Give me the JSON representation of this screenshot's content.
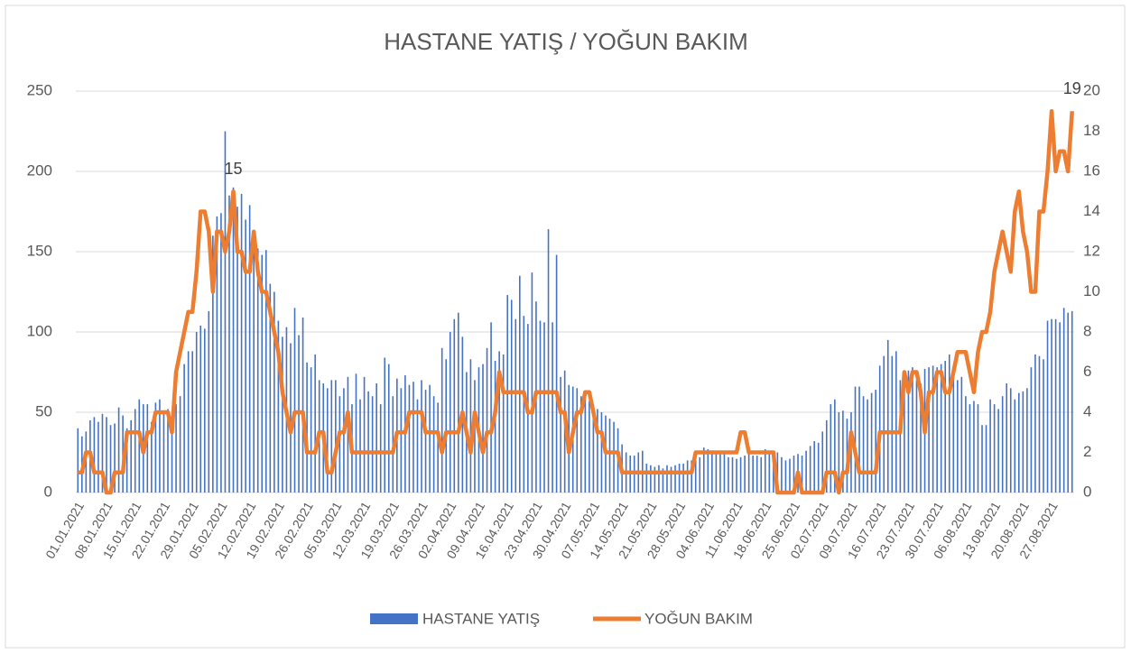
{
  "chart_data": {
    "type": "bar_line",
    "title": "HASTANE YATIŞ / YOĞUN BAKIM",
    "categories": [
      "01.01.2021",
      null,
      null,
      null,
      null,
      null,
      null,
      "08.01.2021",
      null,
      null,
      null,
      null,
      null,
      null,
      "15.01.2021",
      null,
      null,
      null,
      null,
      null,
      null,
      "22.01.2021",
      null,
      null,
      null,
      null,
      null,
      null,
      "29.01.2021",
      null,
      null,
      null,
      null,
      null,
      null,
      "05.02.2021",
      null,
      null,
      null,
      null,
      null,
      null,
      "12.02.2021",
      null,
      null,
      null,
      null,
      null,
      null,
      "19.02.2021",
      null,
      null,
      null,
      null,
      null,
      null,
      "26.02.2021",
      null,
      null,
      null,
      null,
      null,
      null,
      "05.03.2021",
      null,
      null,
      null,
      null,
      null,
      null,
      "12.03.2021",
      null,
      null,
      null,
      null,
      null,
      null,
      "19.03.2021",
      null,
      null,
      null,
      null,
      null,
      null,
      "26.03.2021",
      null,
      null,
      null,
      null,
      null,
      null,
      "02.04.2021",
      null,
      null,
      null,
      null,
      null,
      null,
      "09.04.2021",
      null,
      null,
      null,
      null,
      null,
      null,
      "16.04.2021",
      null,
      null,
      null,
      null,
      null,
      null,
      "23.04.2021",
      null,
      null,
      null,
      null,
      null,
      null,
      "30.04.2021",
      null,
      null,
      null,
      null,
      null,
      null,
      "07.05.2021",
      null,
      null,
      null,
      null,
      null,
      null,
      "14.05.2021",
      null,
      null,
      null,
      null,
      null,
      null,
      "21.05.2021",
      null,
      null,
      null,
      null,
      null,
      null,
      "28.05.2021",
      null,
      null,
      null,
      null,
      null,
      null,
      "04.06.2021",
      null,
      null,
      null,
      null,
      null,
      null,
      "11.06.2021",
      null,
      null,
      null,
      null,
      null,
      null,
      "18.06.2021",
      null,
      null,
      null,
      null,
      null,
      null,
      "25.06.2021",
      null,
      null,
      null,
      null,
      null,
      null,
      "02.07.2021",
      null,
      null,
      null,
      null,
      null,
      null,
      "09.07.2021",
      null,
      null,
      null,
      null,
      null,
      null,
      "16.07.2021",
      null,
      null,
      null,
      null,
      null,
      null,
      "23.07.2021",
      null,
      null,
      null,
      null,
      null,
      null,
      "30.07.2021",
      null,
      null,
      null,
      null,
      null,
      null,
      "06.08.2021",
      null,
      null,
      null,
      null,
      null,
      null,
      "13.08.2021",
      null,
      null,
      null,
      null,
      null,
      null,
      "20.08.2021",
      null,
      null,
      null,
      null,
      null,
      null,
      "27.08.2021",
      null,
      null,
      null,
      null,
      null
    ],
    "series": [
      {
        "name": "HASTANE YATIŞ",
        "type": "bar",
        "color": "#4472c4",
        "values": [
          40,
          35,
          38,
          45,
          47,
          44,
          49,
          47,
          42,
          43,
          53,
          48,
          40,
          45,
          52,
          58,
          55,
          55,
          44,
          56,
          58,
          50,
          52,
          48,
          55,
          60,
          80,
          88,
          88,
          100,
          104,
          102,
          113,
          160,
          172,
          174,
          225,
          185,
          190,
          178,
          186,
          170,
          179,
          160,
          152,
          148,
          151,
          130,
          125,
          107,
          97,
          103,
          93,
          115,
          98,
          109,
          81,
          78,
          86,
          70,
          68,
          65,
          70,
          70,
          60,
          65,
          72,
          55,
          74,
          58,
          72,
          63,
          60,
          68,
          55,
          84,
          80,
          60,
          71,
          65,
          73,
          67,
          69,
          58,
          70,
          64,
          67,
          60,
          56,
          90,
          83,
          100,
          108,
          112,
          97,
          75,
          83,
          70,
          78,
          80,
          90,
          106,
          82,
          88,
          86,
          123,
          120,
          108,
          135,
          110,
          105,
          137,
          119,
          107,
          106,
          164,
          106,
          148,
          72,
          76,
          67,
          66,
          65,
          60,
          58,
          57,
          55,
          52,
          50,
          48,
          46,
          44,
          40,
          30,
          25,
          23,
          23,
          25,
          26,
          18,
          17,
          16,
          17,
          15,
          17,
          16,
          17,
          18,
          18,
          20,
          20,
          20,
          22,
          28,
          27,
          25,
          24,
          25,
          24,
          22,
          22,
          21,
          22,
          23,
          25,
          23,
          23,
          22,
          27,
          24,
          24,
          25,
          22,
          20,
          21,
          23,
          24,
          23,
          26,
          29,
          32,
          31,
          38,
          45,
          55,
          58,
          50,
          51,
          46,
          50,
          66,
          66,
          60,
          58,
          62,
          64,
          79,
          85,
          95,
          85,
          88,
          70,
          65,
          76,
          78,
          70,
          68,
          77,
          78,
          79,
          78,
          80,
          82,
          86,
          73,
          70,
          72,
          60,
          55,
          57,
          55,
          42,
          42,
          58,
          55,
          52,
          60,
          68,
          65,
          58,
          62,
          63,
          65,
          78,
          86,
          85,
          83,
          107,
          108,
          108,
          106,
          115,
          112,
          113
        ]
      },
      {
        "name": "YOĞUN BAKIM",
        "type": "line",
        "axis": "y2",
        "color": "#ed7d31",
        "values": [
          1,
          1,
          2,
          2,
          1,
          1,
          1,
          0,
          0,
          1,
          1,
          1,
          3,
          3,
          3,
          3,
          2,
          3,
          3,
          4,
          4,
          4,
          4,
          3,
          6,
          7,
          8,
          9,
          9,
          11,
          14,
          14,
          13,
          10,
          13,
          13,
          12,
          13,
          15,
          12,
          12,
          11,
          11,
          13,
          11,
          10,
          10,
          9,
          8,
          7,
          5,
          4,
          3,
          4,
          4,
          4,
          2,
          2,
          2,
          3,
          3,
          1,
          1,
          2,
          3,
          3,
          4,
          2,
          2,
          2,
          2,
          2,
          2,
          2,
          2,
          2,
          2,
          2,
          3,
          3,
          3,
          4,
          4,
          4,
          4,
          3,
          3,
          3,
          3,
          2,
          3,
          3,
          3,
          3,
          4,
          3,
          2,
          4,
          3,
          2,
          3,
          3,
          4,
          6,
          5,
          5,
          5,
          5,
          5,
          5,
          4,
          4,
          5,
          5,
          5,
          5,
          5,
          5,
          4,
          4,
          2,
          3,
          4,
          4,
          5,
          5,
          4,
          3,
          3,
          2,
          2,
          2,
          2,
          1,
          1,
          1,
          1,
          1,
          1,
          1,
          1,
          1,
          1,
          1,
          1,
          1,
          1,
          1,
          1,
          1,
          1,
          2,
          2,
          2,
          2,
          2,
          2,
          2,
          2,
          2,
          2,
          2,
          3,
          3,
          2,
          2,
          2,
          2,
          2,
          2,
          2,
          0,
          0,
          0,
          0,
          0,
          1,
          0,
          0,
          0,
          0,
          0,
          0,
          1,
          1,
          1,
          0,
          1,
          1,
          3,
          2,
          1,
          1,
          1,
          1,
          1,
          3,
          3,
          3,
          3,
          3,
          3,
          6,
          5,
          6,
          6,
          5,
          3,
          5,
          5,
          6,
          6,
          5,
          5,
          6,
          7,
          7,
          7,
          6,
          5,
          7,
          8,
          8,
          9,
          11,
          12,
          13,
          12,
          11,
          14,
          15,
          13,
          12,
          10,
          10,
          14,
          14,
          16,
          19,
          16,
          17,
          17,
          16,
          19
        ]
      }
    ],
    "ylim": [
      0,
      250
    ],
    "yticks": [
      0,
      50,
      100,
      150,
      200,
      250
    ],
    "y2lim": [
      0,
      20
    ],
    "y2ticks": [
      0,
      2,
      4,
      6,
      8,
      10,
      12,
      14,
      16,
      18,
      20
    ],
    "grid": true,
    "legend": "bottom"
  }
}
